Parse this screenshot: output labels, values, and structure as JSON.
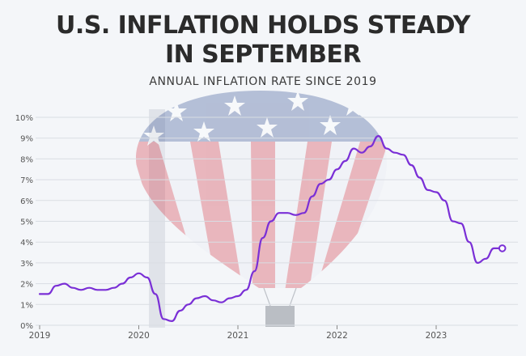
{
  "title_line1": "U.S. INFLATION HOLDS STEADY",
  "title_line2": "IN SEPTEMBER",
  "subtitle": "ANNUAL INFLATION RATE SINCE 2019",
  "colors": {
    "line": "#7a2fd6",
    "grid": "#d9dde3",
    "text": "#2b2b2b",
    "tick": "#555555"
  },
  "chart_data": {
    "type": "line",
    "title": "U.S. INFLATION HOLDS STEADY IN SEPTEMBER",
    "subtitle": "ANNUAL INFLATION RATE SINCE 2019",
    "xlabel": "",
    "ylabel": "",
    "ylim": [
      0,
      10
    ],
    "xlim": [
      2019.0,
      2023.75
    ],
    "y_ticks": [
      "0%",
      "1%",
      "2%",
      "3%",
      "4%",
      "5%",
      "6%",
      "7%",
      "8%",
      "9%",
      "10%"
    ],
    "x_ticks": [
      {
        "value": 2019,
        "label": "2019"
      },
      {
        "value": 2020,
        "label": "2020"
      },
      {
        "value": 2021,
        "label": "2021"
      },
      {
        "value": 2022,
        "label": "2022"
      },
      {
        "value": 2023,
        "label": "2023"
      }
    ],
    "grid": true,
    "end_marker": true,
    "series": [
      {
        "name": "Annual inflation rate",
        "x": [
          2019.0,
          2019.083,
          2019.167,
          2019.25,
          2019.333,
          2019.417,
          2019.5,
          2019.583,
          2019.667,
          2019.75,
          2019.833,
          2019.917,
          2020.0,
          2020.083,
          2020.167,
          2020.25,
          2020.333,
          2020.417,
          2020.5,
          2020.583,
          2020.667,
          2020.75,
          2020.833,
          2020.917,
          2021.0,
          2021.083,
          2021.167,
          2021.25,
          2021.333,
          2021.417,
          2021.5,
          2021.583,
          2021.667,
          2021.75,
          2021.833,
          2021.917,
          2022.0,
          2022.083,
          2022.167,
          2022.25,
          2022.333,
          2022.417,
          2022.5,
          2022.583,
          2022.667,
          2022.75,
          2022.833,
          2022.917,
          2023.0,
          2023.083,
          2023.167,
          2023.25,
          2023.333,
          2023.417,
          2023.5,
          2023.583,
          2023.667
        ],
        "values": [
          1.5,
          1.5,
          1.9,
          2.0,
          1.8,
          1.7,
          1.8,
          1.7,
          1.7,
          1.8,
          2.0,
          2.3,
          2.5,
          2.3,
          1.5,
          0.3,
          0.2,
          0.7,
          1.0,
          1.3,
          1.4,
          1.2,
          1.1,
          1.3,
          1.4,
          1.7,
          2.6,
          4.2,
          5.0,
          5.4,
          5.4,
          5.3,
          5.4,
          6.2,
          6.8,
          7.0,
          7.5,
          7.9,
          8.5,
          8.3,
          8.6,
          9.1,
          8.5,
          8.3,
          8.2,
          7.7,
          7.1,
          6.5,
          6.4,
          6.0,
          5.0,
          4.9,
          4.0,
          3.0,
          3.2,
          3.7,
          3.7
        ]
      }
    ]
  }
}
